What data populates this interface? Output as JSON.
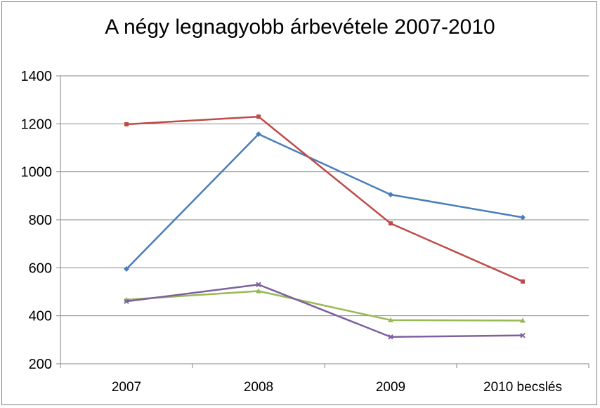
{
  "chart_data": {
    "type": "line",
    "title": "A négy legnagyobb árbevétele 2007-2010",
    "categories": [
      "2007",
      "2008",
      "2009",
      "2010 becslés"
    ],
    "ylim": [
      200,
      1400
    ],
    "yticks": [
      200,
      400,
      600,
      800,
      1000,
      1200,
      1400
    ],
    "grid": true,
    "legend": "none",
    "series": [
      {
        "color": "#4a7ebb",
        "marker": "diamond",
        "values": [
          595,
          1157,
          905,
          810
        ]
      },
      {
        "color": "#be4b48",
        "marker": "square",
        "values": [
          1198,
          1230,
          785,
          543
        ]
      },
      {
        "color": "#98b954",
        "marker": "triangle",
        "values": [
          467,
          503,
          382,
          380
        ]
      },
      {
        "color": "#7d60a0",
        "marker": "x",
        "values": [
          460,
          530,
          312,
          318
        ]
      }
    ]
  }
}
